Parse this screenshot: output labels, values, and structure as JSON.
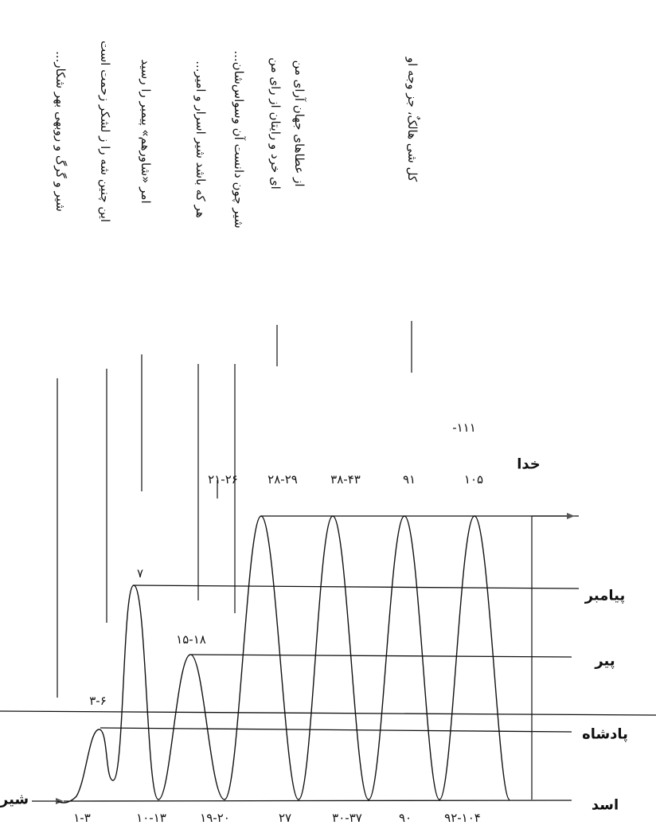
{
  "verses": [
    "شیر و گرگ و روبهی بهر شکار...",
    "این چنین شه را ز لشکر زحمت است",
    "امر «شاورهم» پیمبر را رسید",
    "هر که باشد شیر اسرار و امیر...",
    "شیر چون دانست آن وسواس‌شان...",
    "ای خرد و رایتان از رای من",
    "از عطاهای جهان آرای من",
    "کل شی هالکٌ، جز وجه او"
  ],
  "levels": {
    "khoda": "خدا",
    "payambar": "پیامبر",
    "pir": "پیر",
    "padshah": "پادشاه",
    "asad": "اسد",
    "shir": "شیر"
  },
  "bottom_numbers": [
    "۱-۳",
    "۱۰-۱۳",
    "۱۹-۲۰",
    "۲۷",
    "۳۰-۳۷",
    "۹۰",
    "۹۲-۱۰۴"
  ],
  "top_numbers": [
    "۲۱-۲۶",
    "۲۸-۲۹",
    "۳۸-۴۳",
    "۹۱",
    "۱۰۵",
    "-۱۱۱"
  ],
  "peak_numbers": [
    "۳-۶",
    "۷",
    "۱۵-۱۸"
  ]
}
